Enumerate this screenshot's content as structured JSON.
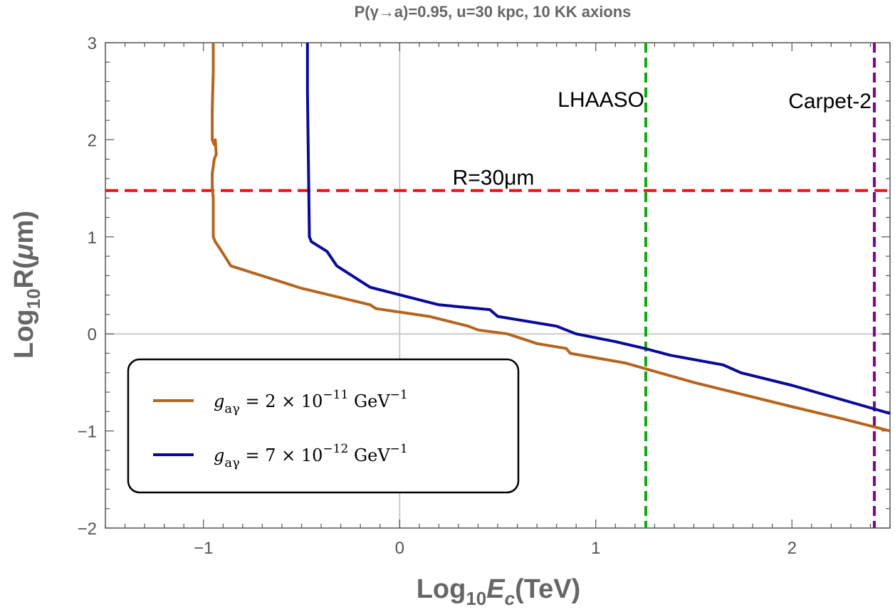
{
  "chart_data": {
    "type": "line",
    "title": "P(γ→a)=0.95, u=30 kpc, 10 KK axions",
    "xlabel": "Log₁₀E_c(TeV)",
    "ylabel": "Log₁₀R(μm)",
    "xlim": [
      -1.5,
      2.5
    ],
    "ylim": [
      -2,
      3
    ],
    "xticks": [
      -1,
      0,
      1,
      2
    ],
    "xtick_labels": [
      "−1",
      "0",
      "1",
      "2"
    ],
    "yticks": [
      -2,
      -1,
      0,
      1,
      2,
      3
    ],
    "ytick_labels": [
      "−2",
      "−1",
      "0",
      "1",
      "2",
      "3"
    ],
    "grid": false,
    "legend_position": "bottom-left",
    "series": [
      {
        "name": "g_aγ = 2 × 10⁻¹¹ GeV⁻¹",
        "color": "#B5651D",
        "x": [
          -0.95,
          -0.95,
          -0.955,
          -0.955,
          -0.945,
          -0.94,
          -0.935,
          -0.945,
          -0.955,
          -0.955,
          -0.95,
          -0.95,
          -0.94,
          -0.91,
          -0.86,
          -0.5,
          -0.15,
          -0.12,
          0.15,
          0.35,
          0.4,
          0.55,
          0.7,
          0.85,
          0.87,
          1.15,
          1.5,
          2.0,
          2.25,
          2.5
        ],
        "y": [
          3.0,
          2.7,
          2.3,
          2.0,
          1.95,
          2.0,
          1.85,
          1.8,
          1.65,
          1.5,
          1.4,
          1.0,
          0.95,
          0.86,
          0.7,
          0.47,
          0.3,
          0.26,
          0.18,
          0.08,
          0.04,
          0.0,
          -0.1,
          -0.15,
          -0.2,
          -0.3,
          -0.5,
          -0.75,
          -0.87,
          -1.0
        ]
      },
      {
        "name": "g_aγ = 7 × 10⁻¹² GeV⁻¹",
        "color": "#0A0A99",
        "x": [
          -0.47,
          -0.47,
          -0.465,
          -0.46,
          -0.45,
          -0.37,
          -0.32,
          -0.15,
          0.2,
          0.46,
          0.5,
          0.8,
          0.9,
          1.1,
          1.25,
          1.38,
          1.65,
          1.74,
          2.0,
          2.5
        ],
        "y": [
          3.0,
          2.5,
          1.8,
          1.0,
          0.95,
          0.85,
          0.7,
          0.48,
          0.3,
          0.25,
          0.18,
          0.08,
          0.0,
          -0.08,
          -0.15,
          -0.22,
          -0.32,
          -0.4,
          -0.53,
          -0.82
        ]
      }
    ],
    "reference_lines": [
      {
        "orientation": "horizontal",
        "value": 1.477,
        "label": "R=30μm",
        "color": "#EE1111"
      },
      {
        "orientation": "vertical",
        "value": 1.255,
        "label": "LHAASO",
        "color": "#11AA11"
      },
      {
        "orientation": "vertical",
        "value": 2.42,
        "label": "Carpet-2",
        "color": "#8B008B"
      }
    ]
  },
  "legend": {
    "entries": [
      {
        "symbol": "g",
        "sub": "aγ",
        "rest": " = 2 × 10",
        "exp": "−11",
        "unit": " GeV",
        "unit_exp": "−1",
        "color": "#B5651D"
      },
      {
        "symbol": "g",
        "sub": "aγ",
        "rest": " = 7 × 10",
        "exp": "−12",
        "unit": " GeV",
        "unit_exp": "−1",
        "color": "#0A0A99"
      }
    ]
  }
}
